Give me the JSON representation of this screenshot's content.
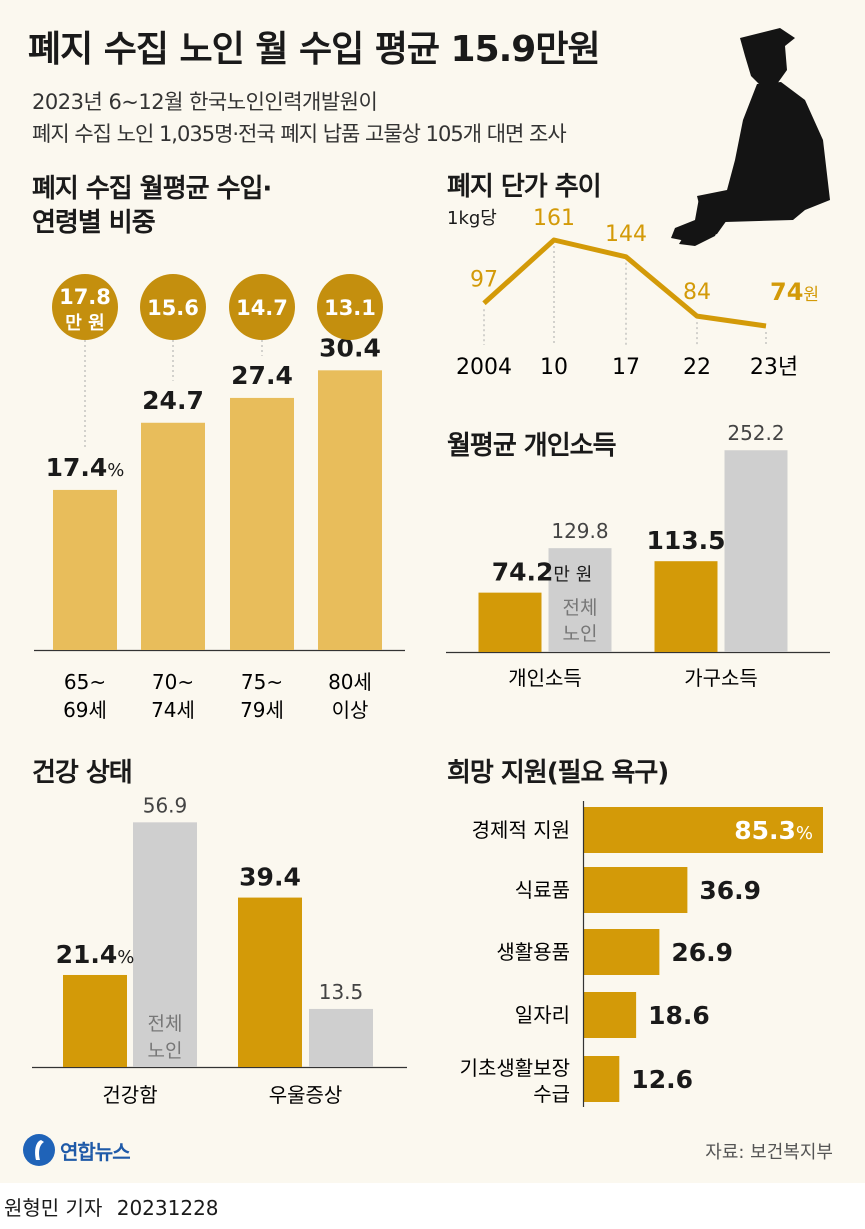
{
  "header": {
    "title": "폐지 수집 노인 월 수입 평균 15.9만원",
    "subtitle_1": "2023년 6~12월 한국노인인력개발원이",
    "subtitle_2": "폐지 수집 노인 1,035명·전국 폐지 납품 고물상 105개 대면 조사"
  },
  "colors": {
    "gold": "#d39a08",
    "light_gold": "#e8bd5b",
    "gray": "#cfcfcf",
    "circle": "#c48f0e",
    "bg": "#fbf8ef"
  },
  "chart_data": [
    {
      "type": "bar",
      "title_1": "폐지 수집 월평균 수입·",
      "title_2": "연령별 비중",
      "categories": [
        [
          "65~",
          "69세"
        ],
        [
          "70~",
          "74세"
        ],
        [
          "75~",
          "79세"
        ],
        [
          "80세",
          "이상"
        ]
      ],
      "values": [
        17.4,
        24.7,
        27.4,
        30.4
      ],
      "value_labels": [
        "17.4",
        "24.7",
        "27.4",
        "30.4"
      ],
      "first_value_unit": "%",
      "incomes": [
        17.8,
        15.6,
        14.7,
        13.1
      ],
      "income_labels": [
        "17.8",
        "15.6",
        "14.7",
        "13.1"
      ],
      "income_unit": "만 원",
      "ylim": [
        0,
        40
      ],
      "grid": false
    },
    {
      "type": "line",
      "title": "폐지 단가 추이",
      "unit_label": "1kg당",
      "x": [
        "2004",
        "10",
        "17",
        "22",
        "23년"
      ],
      "values": [
        97,
        161,
        144,
        84,
        74
      ],
      "value_labels": [
        "97",
        "161",
        "144",
        "84",
        "74"
      ],
      "last_value_unit": "원",
      "ylim": [
        60,
        175
      ]
    },
    {
      "type": "bar",
      "title": "월평균 개인소득",
      "categories": [
        "개인소득",
        "가구소득"
      ],
      "series": [
        {
          "values": [
            74.2,
            113.5
          ],
          "labels": [
            "74.2",
            "113.5"
          ]
        },
        {
          "name": "전체 노인",
          "values": [
            129.8,
            252.2
          ],
          "labels": [
            "129.8",
            "252.2"
          ]
        }
      ],
      "first_value_unit": "만 원",
      "series_note_1": "전체",
      "series_note_2": "노인",
      "ylim": [
        0,
        280
      ]
    },
    {
      "type": "bar",
      "title": "건강 상태",
      "categories": [
        "건강함",
        "우울증상"
      ],
      "series": [
        {
          "values": [
            21.4,
            39.4
          ],
          "labels": [
            "21.4",
            "39.4"
          ]
        },
        {
          "name": "전체 노인",
          "values": [
            56.9,
            13.5
          ],
          "labels": [
            "56.9",
            "13.5"
          ]
        }
      ],
      "first_value_unit": "%",
      "series_note_1": "전체",
      "series_note_2": "노인",
      "ylim": [
        0,
        65
      ]
    },
    {
      "type": "bar",
      "orientation": "horizontal",
      "title": "희망 지원(필요 욕구)",
      "categories": [
        [
          "경제적 지원"
        ],
        [
          "식료품"
        ],
        [
          "생활용품"
        ],
        [
          "일자리"
        ],
        [
          "기초생활보장",
          "수급"
        ]
      ],
      "values": [
        85.3,
        36.9,
        26.9,
        18.6,
        12.6
      ],
      "value_labels": [
        "85.3",
        "36.9",
        "26.9",
        "18.6",
        "12.6"
      ],
      "first_value_unit": "%",
      "xlim": [
        0,
        85.3
      ]
    }
  ],
  "footer": {
    "logo_text": "연합뉴스",
    "source": "자료: 보건복지부",
    "credit": "원형민 기자",
    "date": "20231228"
  }
}
